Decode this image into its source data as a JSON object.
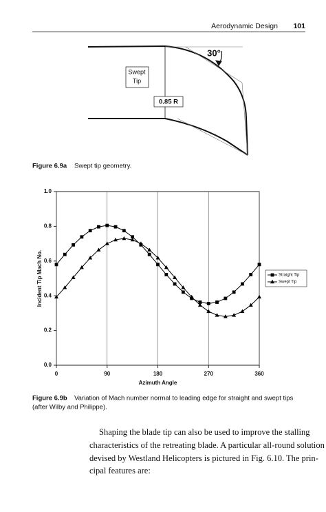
{
  "header": {
    "title": "Aerodynamic Design",
    "page": "101"
  },
  "figure_a": {
    "label": "Figure 6.9a",
    "caption": "Swept tip geometry.",
    "tip_label": [
      "Swept",
      "Tip"
    ],
    "station": "0.85 R",
    "angle": "30°"
  },
  "chart_data": {
    "type": "line",
    "xlabel": "Azimuth Angle",
    "ylabel": "Incident Tip Mach No.",
    "x": [
      0,
      15,
      30,
      45,
      60,
      75,
      90,
      105,
      120,
      135,
      150,
      165,
      180,
      195,
      210,
      225,
      240,
      255,
      270,
      285,
      300,
      315,
      330,
      345,
      360
    ],
    "series": [
      {
        "name": "Straight Tip",
        "color": "#000000",
        "marker": "square",
        "values": [
          0.58,
          0.638,
          0.693,
          0.739,
          0.775,
          0.797,
          0.805,
          0.797,
          0.775,
          0.739,
          0.693,
          0.638,
          0.58,
          0.522,
          0.468,
          0.421,
          0.385,
          0.363,
          0.355,
          0.363,
          0.385,
          0.421,
          0.468,
          0.522,
          0.58
        ]
      },
      {
        "name": "Swept Tip",
        "color": "#000000",
        "marker": "triangle",
        "values": [
          0.393,
          0.447,
          0.505,
          0.563,
          0.618,
          0.664,
          0.7,
          0.722,
          0.73,
          0.722,
          0.7,
          0.664,
          0.618,
          0.563,
          0.505,
          0.447,
          0.393,
          0.346,
          0.31,
          0.288,
          0.28,
          0.288,
          0.31,
          0.346,
          0.393
        ]
      }
    ],
    "xlim": [
      0,
      360
    ],
    "xticks": [
      0,
      90,
      180,
      270,
      360
    ],
    "ylim": [
      0,
      1
    ],
    "yticks": [
      {
        "value": 0,
        "label": "0.0"
      },
      0.2,
      0.4,
      0.6,
      0.8,
      {
        "value": 1,
        "label": "1.0"
      }
    ],
    "grid": true,
    "legend": "right"
  },
  "figure_b": {
    "label": "Figure 6.9b",
    "caption": [
      "Variation of Mach number normal to leading edge for straight and swept tips",
      "(after Wilby and Philippe)."
    ]
  },
  "body": [
    "Shaping the blade tip can also be used to improve the stalling",
    "characteristics of the retreating blade. A particular all-round solution",
    "devised by Westland Helicopters is pictured in Fig. 6.10. The prin-",
    "cipal features are:"
  ]
}
